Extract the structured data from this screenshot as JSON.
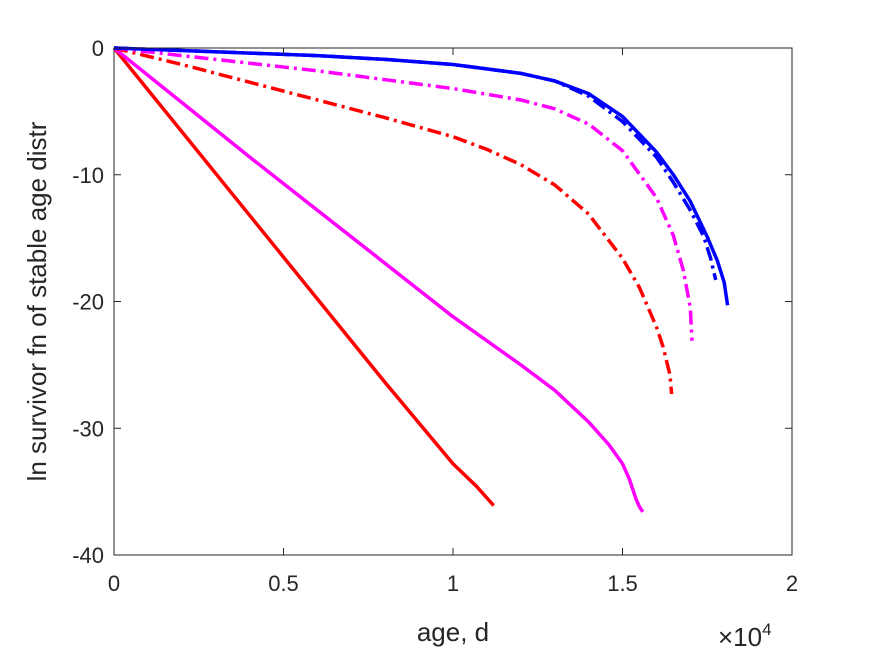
{
  "chart_data": {
    "type": "line",
    "xlabel": "age, d",
    "ylabel": "ln survivor fn of stable age distr",
    "x_exponent_label": "×10",
    "x_exponent_power": "4",
    "xlim": [
      0,
      20000
    ],
    "ylim": [
      -40,
      0
    ],
    "x_ticks": [
      0,
      5000,
      10000,
      15000,
      20000
    ],
    "x_tick_labels": [
      "0",
      "0.5",
      "1",
      "1.5",
      "2"
    ],
    "y_ticks": [
      0,
      -10,
      -20,
      -30,
      -40
    ],
    "y_tick_labels": [
      "0",
      "-10",
      "-20",
      "-30",
      "-40"
    ],
    "grid": false,
    "series": [
      {
        "color": "#ff0000",
        "style": "solid",
        "x": [
          0,
          2000,
          4000,
          6000,
          8000,
          10000,
          10700,
          10900,
          11100,
          11200
        ],
        "y": [
          0,
          -6.6,
          -13.2,
          -19.8,
          -26.4,
          -32.8,
          -34.6,
          -35.2,
          -35.8,
          -36.1
        ]
      },
      {
        "color": "#ff00ff",
        "style": "solid",
        "x": [
          0,
          2000,
          4000,
          6000,
          8000,
          10000,
          12000,
          13000,
          14000,
          14600,
          15000,
          15200,
          15400,
          15500,
          15600
        ],
        "y": [
          0,
          -4.3,
          -8.6,
          -12.8,
          -17.0,
          -21.2,
          -25.0,
          -27.0,
          -29.5,
          -31.3,
          -32.8,
          -34.0,
          -35.6,
          -36.2,
          -36.6
        ]
      },
      {
        "color": "#ff0000",
        "style": "dashdot",
        "x": [
          0,
          2000,
          4000,
          6000,
          8000,
          10000,
          11000,
          12000,
          13000,
          14000,
          15000,
          15500,
          16000,
          16200,
          16400,
          16450
        ],
        "y": [
          0,
          -1.3,
          -2.7,
          -4.1,
          -5.5,
          -7.0,
          -8.0,
          -9.2,
          -10.8,
          -13.1,
          -16.6,
          -18.9,
          -22.0,
          -23.6,
          -25.8,
          -27.3
        ]
      },
      {
        "color": "#ff00ff",
        "style": "dashdot",
        "x": [
          0,
          2000,
          4000,
          6000,
          8000,
          10000,
          12000,
          13000,
          14000,
          15000,
          16000,
          16500,
          16800,
          17000,
          17050
        ],
        "y": [
          0,
          -0.6,
          -1.2,
          -1.8,
          -2.5,
          -3.2,
          -4.1,
          -4.8,
          -6.0,
          -8.1,
          -11.8,
          -14.8,
          -17.6,
          -20.5,
          -23.1
        ]
      },
      {
        "color": "#0000ff",
        "style": "dashdot",
        "x": [
          0,
          2000,
          4000,
          6000,
          8000,
          10000,
          12000,
          13000,
          14000,
          15000,
          16000,
          16500,
          17000,
          17400,
          17600,
          17750
        ],
        "y": [
          0,
          -0.2,
          -0.4,
          -0.6,
          -0.9,
          -1.3,
          -2.0,
          -2.6,
          -3.8,
          -5.8,
          -8.6,
          -10.6,
          -12.8,
          -14.9,
          -16.6,
          -18.3
        ]
      },
      {
        "color": "#0000ff",
        "style": "solid",
        "x": [
          0,
          2000,
          4000,
          6000,
          8000,
          10000,
          12000,
          13000,
          14000,
          15000,
          16000,
          16500,
          17000,
          17500,
          17800,
          18000,
          18100
        ],
        "y": [
          0,
          -0.2,
          -0.4,
          -0.6,
          -0.9,
          -1.3,
          -2.0,
          -2.6,
          -3.6,
          -5.4,
          -8.2,
          -10.0,
          -12.1,
          -14.9,
          -16.8,
          -18.5,
          -20.3
        ]
      }
    ]
  }
}
